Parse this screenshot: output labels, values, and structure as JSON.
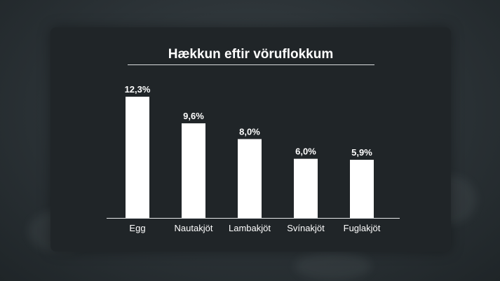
{
  "chart_data": {
    "type": "bar",
    "title": "Hækkun eftir vöruflokkum",
    "categories": [
      "Egg",
      "Nautakjöt",
      "Lambakjöt",
      "Svínakjöt",
      "Fuglakjöt"
    ],
    "values": [
      12.3,
      9.6,
      8.0,
      6.0,
      5.9
    ],
    "value_labels": [
      "12,3%",
      "9,6%",
      "8,0%",
      "6,0%",
      "5,9%"
    ],
    "xlabel": "",
    "ylabel": "",
    "ylim": [
      0,
      12.3
    ],
    "grid": false,
    "colors": {
      "bar": "#ffffff",
      "text": "#ffffff",
      "panel": "#202528",
      "axis": "#e6e8e9"
    }
  }
}
